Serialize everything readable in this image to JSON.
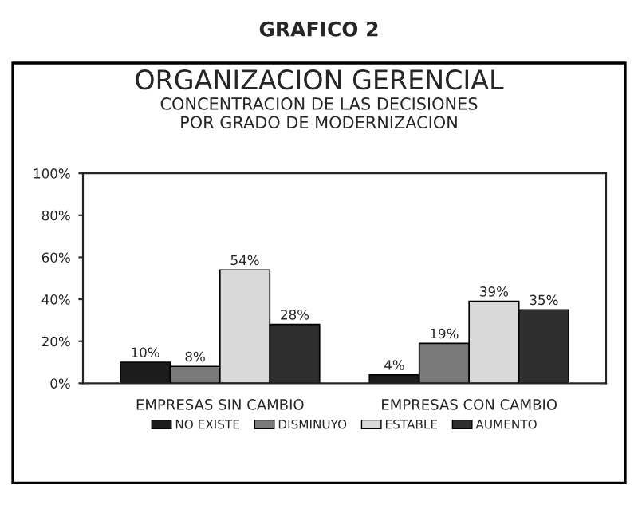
{
  "chart_data": {
    "type": "bar",
    "title": "ORGANIZACION GERENCIAL",
    "subtitle": "CONCENTRACION DE LAS DECISIONES\nPOR GRADO DE MODERNIZACION",
    "annotations": [
      "GRAFICO 2"
    ],
    "categories": [
      "EMPRESAS SIN CAMBIO",
      "EMPRESAS CON CAMBIO"
    ],
    "series": [
      {
        "name": "NO EXISTE",
        "color": "#1c1c1c",
        "values": [
          10,
          4
        ],
        "value_labels": [
          "10%",
          "4%"
        ]
      },
      {
        "name": "DISMINUYO",
        "color": "#7a7a7a",
        "values": [
          8,
          19
        ],
        "value_labels": [
          "8%",
          "19%"
        ]
      },
      {
        "name": "ESTABLE",
        "color": "#d9d9d9",
        "values": [
          54,
          39
        ],
        "value_labels": [
          "54%",
          "39%"
        ]
      },
      {
        "name": "AUMENTO",
        "color": "#2e2e2e",
        "values": [
          28,
          35
        ],
        "value_labels": [
          "28%",
          "35%"
        ]
      }
    ],
    "ylim": [
      0,
      100
    ],
    "yticks": [
      {
        "value": 0,
        "label": "0%"
      },
      {
        "value": 20,
        "label": "20%"
      },
      {
        "value": 40,
        "label": "40%"
      },
      {
        "value": 60,
        "label": "60%"
      },
      {
        "value": 80,
        "label": "80%"
      },
      {
        "value": 100,
        "label": "100%"
      }
    ],
    "legend": "bottom",
    "grid": false
  }
}
